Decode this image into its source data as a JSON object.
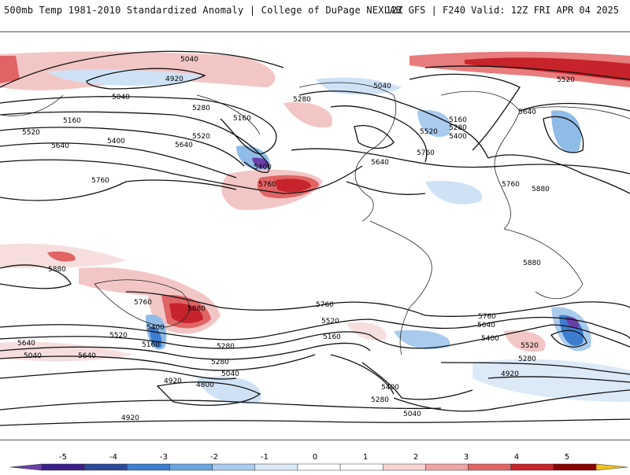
{
  "header": {
    "title_left": "500mb Temp 1981-2010 Standardized Anomaly | College of DuPage NEXLAB",
    "title_right": "12Z GFS | F240 Valid: 12Z FRI APR 04 2025"
  },
  "contour_labels": [
    {
      "id": "c1",
      "text": "5040"
    },
    {
      "id": "c2",
      "text": "4920"
    },
    {
      "id": "c3",
      "text": "5040"
    },
    {
      "id": "c4",
      "text": "5280"
    },
    {
      "id": "c5",
      "text": "5160"
    },
    {
      "id": "c6",
      "text": "5160"
    },
    {
      "id": "c7",
      "text": "5520"
    },
    {
      "id": "c8",
      "text": "5400"
    },
    {
      "id": "c9",
      "text": "5640"
    },
    {
      "id": "c10",
      "text": "5520"
    },
    {
      "id": "c11",
      "text": "5640"
    },
    {
      "id": "c12",
      "text": "5400"
    },
    {
      "id": "c13",
      "text": "5760"
    },
    {
      "id": "c14",
      "text": "5760"
    },
    {
      "id": "c15",
      "text": "5280"
    },
    {
      "id": "c16",
      "text": "5040"
    },
    {
      "id": "c17",
      "text": "5640"
    },
    {
      "id": "c18",
      "text": "5520"
    },
    {
      "id": "c19",
      "text": "5160"
    },
    {
      "id": "c20",
      "text": "5280"
    },
    {
      "id": "c21",
      "text": "5400"
    },
    {
      "id": "c22",
      "text": "5760"
    },
    {
      "id": "c23",
      "text": "5520"
    },
    {
      "id": "c24",
      "text": "5640"
    },
    {
      "id": "c25",
      "text": "5760"
    },
    {
      "id": "c26",
      "text": "5880"
    },
    {
      "id": "c27",
      "text": "5880"
    },
    {
      "id": "c28",
      "text": "5880"
    },
    {
      "id": "c29",
      "text": "5880"
    },
    {
      "id": "c30",
      "text": "5760"
    },
    {
      "id": "c31",
      "text": "5400"
    },
    {
      "id": "c32",
      "text": "5520"
    },
    {
      "id": "c33",
      "text": "5160"
    },
    {
      "id": "c34",
      "text": "5640"
    },
    {
      "id": "c35",
      "text": "5280"
    },
    {
      "id": "c36",
      "text": "5040"
    },
    {
      "id": "c37",
      "text": "5640"
    },
    {
      "id": "c38",
      "text": "5280"
    },
    {
      "id": "c39",
      "text": "5040"
    },
    {
      "id": "c40",
      "text": "4920"
    },
    {
      "id": "c41",
      "text": "4800"
    },
    {
      "id": "c42",
      "text": "5760"
    },
    {
      "id": "c43",
      "text": "5520"
    },
    {
      "id": "c44",
      "text": "5160"
    },
    {
      "id": "c45",
      "text": "5400"
    },
    {
      "id": "c46",
      "text": "5280"
    },
    {
      "id": "c47",
      "text": "5040"
    },
    {
      "id": "c48",
      "text": "5760"
    },
    {
      "id": "c49",
      "text": "5640"
    },
    {
      "id": "c50",
      "text": "5400"
    },
    {
      "id": "c51",
      "text": "5520"
    },
    {
      "id": "c52",
      "text": "5280"
    },
    {
      "id": "c53",
      "text": "4920"
    },
    {
      "id": "c54",
      "text": "4920"
    }
  ],
  "colorbar": {
    "ticks": [
      "-5",
      "-4",
      "-3",
      "-2",
      "-1",
      "0",
      "1",
      "2",
      "3",
      "4",
      "5"
    ],
    "colors": [
      "#3a1f8a",
      "#2c4a9a",
      "#3d7dd0",
      "#6aa6e0",
      "#a9cbee",
      "#dce9f7",
      "#ffffff",
      "#ffffff",
      "#f7d3d3",
      "#eea4a4",
      "#e06464",
      "#c7232a",
      "#8b0000"
    ],
    "left_cap_color": "#6a3fa8",
    "right_cap_color": "#f0c020"
  }
}
